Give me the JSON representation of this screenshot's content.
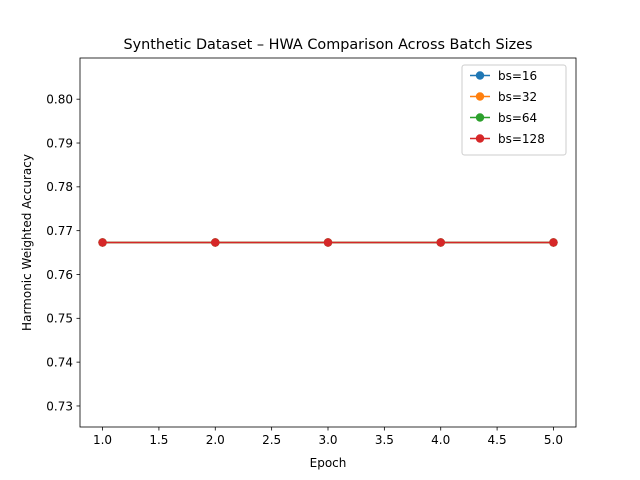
{
  "chart_data": {
    "type": "line",
    "title": "Synthetic Dataset – HWA Comparison Across Batch Sizes",
    "xlabel": "Epoch",
    "ylabel": "Harmonic Weighted Accuracy",
    "xlim": [
      0.8,
      5.2
    ],
    "ylim": [
      0.7252,
      0.8094
    ],
    "x_ticks": [
      1.0,
      1.5,
      2.0,
      2.5,
      3.0,
      3.5,
      4.0,
      4.5,
      5.0
    ],
    "x_tick_labels": [
      "1.0",
      "1.5",
      "2.0",
      "2.5",
      "3.0",
      "3.5",
      "4.0",
      "4.5",
      "5.0"
    ],
    "y_ticks": [
      0.73,
      0.74,
      0.75,
      0.76,
      0.77,
      0.78,
      0.79,
      0.8
    ],
    "y_tick_labels": [
      "0.73",
      "0.74",
      "0.75",
      "0.76",
      "0.77",
      "0.78",
      "0.79",
      "0.80"
    ],
    "grid": false,
    "legend_position": "top-right",
    "x": [
      1,
      2,
      3,
      4,
      5
    ],
    "series": [
      {
        "name": "bs=16",
        "color": "#1f77b4",
        "values": [
          0.7673,
          0.7673,
          0.7673,
          0.7673,
          0.7673
        ]
      },
      {
        "name": "bs=32",
        "color": "#ff7f0e",
        "values": [
          0.7673,
          0.7673,
          0.7673,
          0.7673,
          0.7673
        ]
      },
      {
        "name": "bs=64",
        "color": "#2ca02c",
        "values": [
          0.7673,
          0.7673,
          0.7673,
          0.7673,
          0.7673
        ]
      },
      {
        "name": "bs=128",
        "color": "#d62728",
        "values": [
          0.7673,
          0.7673,
          0.7673,
          0.7673,
          0.7673
        ]
      }
    ]
  }
}
